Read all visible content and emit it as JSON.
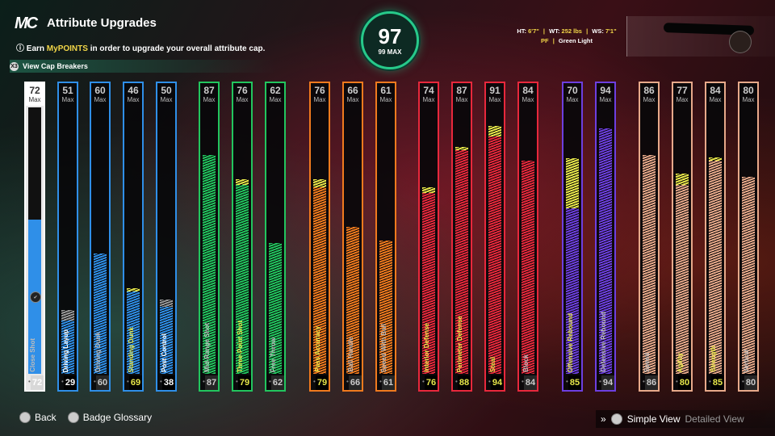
{
  "header": {
    "logo": "MC",
    "title": "Attribute Upgrades",
    "subtitle_prefix": "Earn ",
    "subtitle_highlight": "MyPOINTS",
    "subtitle_suffix": " in order to upgrade your overall attribute cap.",
    "cap_breakers_label": "View Cap Breakers",
    "cap_breakers_button": "X3"
  },
  "overall": {
    "value": "97",
    "max_label": "99 MAX"
  },
  "player_info": {
    "ht_label": "HT:",
    "ht": "6'7\"",
    "wt_label": "WT:",
    "wt": "252 lbs",
    "ws_label": "WS:",
    "ws": "7'1\"",
    "position": "PF",
    "plan": "Green Light"
  },
  "colors": {
    "blue": "#2f8fe8",
    "green": "#22c55e",
    "orange": "#f07a1e",
    "red": "#e8283c",
    "purple": "#6d3fe0",
    "peach": "#e7a98a",
    "upgrade_yellow": "#e8e84a",
    "upgrade_gray": "#9a9a9a"
  },
  "attributes": [
    {
      "name": "Close Shot",
      "max": 72,
      "current": 72,
      "max_label": "Max",
      "group": "blue",
      "selected": true,
      "fill": 0.58
    },
    {
      "name": "Driving Layup",
      "max": 51,
      "current": 29,
      "max_label": "Max",
      "group": "blue",
      "fill": 0.2,
      "upgrade": 0.24,
      "upgrade_color": "gray"
    },
    {
      "name": "Driving Dunk",
      "max": 60,
      "current": 60,
      "max_label": "Max",
      "group": "blue",
      "fill": 0.45
    },
    {
      "name": "Standing Dunk",
      "max": 46,
      "current": 69,
      "max_label": "Max",
      "group": "blue",
      "fill": 0.31,
      "upgrade": 0.31,
      "upgrade_color": "yellow"
    },
    {
      "name": "Post Control",
      "max": 50,
      "current": 38,
      "max_label": "Max",
      "group": "blue",
      "fill": 0.25,
      "upgrade": 0.28,
      "upgrade_color": "gray"
    },
    {
      "name": "Mid-Range Shot",
      "max": 87,
      "current": 87,
      "max_label": "Max",
      "group": "green",
      "fill": 0.82
    },
    {
      "name": "Three-Point Shot",
      "max": 76,
      "current": 79,
      "max_label": "Max",
      "group": "green",
      "fill": 0.71,
      "upgrade": 0.73,
      "upgrade_color": "yellow"
    },
    {
      "name": "Free Throw",
      "max": 62,
      "current": 62,
      "max_label": "Max",
      "group": "green",
      "fill": 0.49
    },
    {
      "name": "Pass Accuracy",
      "max": 76,
      "current": 79,
      "max_label": "Max",
      "group": "orange",
      "fill": 0.7,
      "upgrade": 0.73,
      "upgrade_color": "yellow"
    },
    {
      "name": "Ball Handle",
      "max": 66,
      "current": 66,
      "max_label": "Max",
      "group": "orange",
      "fill": 0.55
    },
    {
      "name": "Speed With Ball",
      "max": 61,
      "current": 61,
      "max_label": "Max",
      "group": "orange",
      "fill": 0.5
    },
    {
      "name": "Interior Defense",
      "max": 74,
      "current": 76,
      "max_label": "Max",
      "group": "red",
      "fill": 0.68,
      "upgrade": 0.7,
      "upgrade_color": "yellow"
    },
    {
      "name": "Perimeter Defense",
      "max": 87,
      "current": 88,
      "max_label": "Max",
      "group": "red",
      "fill": 0.84,
      "upgrade": 0.85,
      "upgrade_color": "yellow"
    },
    {
      "name": "Steal",
      "max": 91,
      "current": 94,
      "max_label": "Max",
      "group": "red",
      "fill": 0.89,
      "upgrade": 0.93,
      "upgrade_color": "yellow"
    },
    {
      "name": "Block",
      "max": 84,
      "current": 84,
      "max_label": "Max",
      "group": "red",
      "fill": 0.8
    },
    {
      "name": "Offensive Rebound",
      "max": 70,
      "current": 85,
      "max_label": "Max",
      "group": "purple",
      "fill": 0.62,
      "upgrade": 0.81,
      "upgrade_color": "yellow"
    },
    {
      "name": "Defensive Rebound",
      "max": 94,
      "current": 94,
      "max_label": "Max",
      "group": "purple",
      "fill": 0.92
    },
    {
      "name": "Speed",
      "max": 86,
      "current": 86,
      "max_label": "Max",
      "group": "peach",
      "fill": 0.82
    },
    {
      "name": "Agility",
      "max": 77,
      "current": 80,
      "max_label": "Max",
      "group": "peach",
      "fill": 0.71,
      "upgrade": 0.75,
      "upgrade_color": "yellow"
    },
    {
      "name": "Strength",
      "max": 84,
      "current": 85,
      "max_label": "Max",
      "group": "peach",
      "fill": 0.8,
      "upgrade": 0.81,
      "upgrade_color": "yellow"
    },
    {
      "name": "Vertical",
      "max": 80,
      "current": 80,
      "max_label": "Max",
      "group": "peach",
      "fill": 0.74
    }
  ],
  "footer": {
    "back": "Back",
    "badge_glossary": "Badge Glossary",
    "arrows": "»",
    "simple_view": "Simple View",
    "detailed_view": "Detailed View"
  }
}
